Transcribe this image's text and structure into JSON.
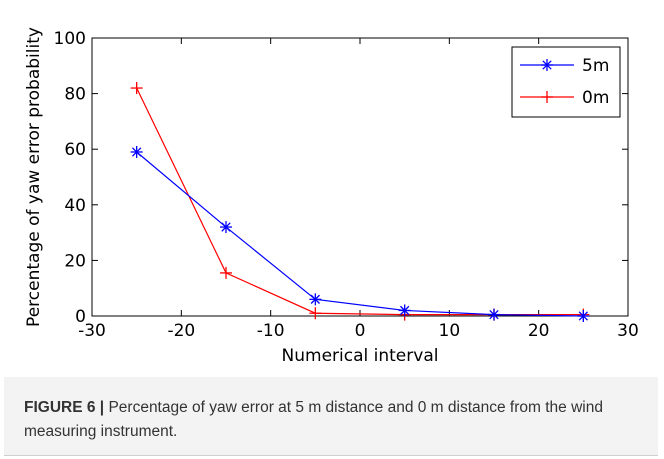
{
  "chart_data": {
    "type": "line",
    "xlabel": "Numerical interval",
    "ylabel": "Percentage of yaw error probability",
    "xlim": [
      -30,
      30
    ],
    "ylim": [
      0,
      100
    ],
    "xticks": [
      -30,
      -20,
      -10,
      0,
      10,
      20,
      30
    ],
    "yticks": [
      0,
      20,
      40,
      60,
      80,
      100
    ],
    "x": [
      -25,
      -15,
      -5,
      5,
      15,
      25
    ],
    "legend_position": "top-right",
    "grid": false,
    "series": [
      {
        "name": "5m",
        "values": [
          59,
          32,
          6,
          2,
          0.5,
          0
        ],
        "color": "#0000ff",
        "marker": "asterisk"
      },
      {
        "name": "0m",
        "values": [
          82,
          15.5,
          1,
          0.5,
          0.5,
          0.5
        ],
        "color": "#ff0000",
        "marker": "plus"
      }
    ]
  },
  "caption": {
    "label": "FIGURE 6 |",
    "text": " Percentage of yaw error at 5 m distance and 0 m distance from the wind measuring instrument."
  }
}
